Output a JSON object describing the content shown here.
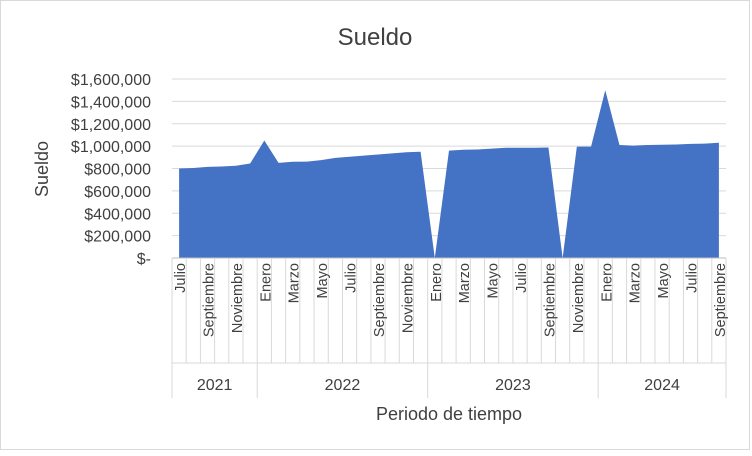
{
  "chart_data": {
    "type": "area",
    "title": "Sueldo",
    "xlabel": "Periodo de tiempo",
    "ylabel": "Sueldo",
    "ylim": [
      0,
      1600000
    ],
    "yticks": [
      0,
      200000,
      400000,
      600000,
      800000,
      1000000,
      1200000,
      1400000,
      1600000
    ],
    "ytick_labels": [
      "$-",
      "$200,000",
      "$400,000",
      "$600,000",
      "$800,000",
      "$1,000,000",
      "$1,200,000",
      "$1,400,000",
      "$1,600,000"
    ],
    "color": "#4472c4",
    "grid": true,
    "legend": "none",
    "years": [
      {
        "label": "2021",
        "start": 0,
        "count": 6
      },
      {
        "label": "2022",
        "start": 6,
        "count": 12
      },
      {
        "label": "2023",
        "start": 18,
        "count": 12
      },
      {
        "label": "2024",
        "start": 30,
        "count": 9
      }
    ],
    "x": [
      "Julio",
      "Agosto",
      "Septiembre",
      "Octubre",
      "Noviembre",
      "Diciembre",
      "Enero",
      "Febrero",
      "Marzo",
      "Abril",
      "Mayo",
      "Junio",
      "Julio",
      "Agosto",
      "Septiembre",
      "Octubre",
      "Noviembre",
      "Diciembre",
      "Enero",
      "Febrero",
      "Marzo",
      "Abril",
      "Mayo",
      "Junio",
      "Julio",
      "Agosto",
      "Septiembre",
      "Octubre",
      "Noviembre",
      "Diciembre",
      "Enero",
      "Febrero",
      "Marzo",
      "Abril",
      "Mayo",
      "Junio",
      "Julio",
      "Agosto",
      "Septiembre"
    ],
    "x_shown": [
      true,
      false,
      true,
      false,
      true,
      false,
      true,
      false,
      true,
      false,
      true,
      false,
      true,
      false,
      true,
      false,
      true,
      false,
      true,
      false,
      true,
      false,
      true,
      false,
      true,
      false,
      true,
      false,
      true,
      false,
      true,
      false,
      true,
      false,
      true,
      false,
      true,
      false,
      true
    ],
    "values": [
      800000,
      805000,
      815000,
      818000,
      825000,
      845000,
      1050000,
      850000,
      860000,
      862000,
      875000,
      895000,
      905000,
      915000,
      925000,
      935000,
      945000,
      950000,
      0,
      960000,
      968000,
      970000,
      978000,
      985000,
      985000,
      985000,
      988000,
      0,
      995000,
      995000,
      1500000,
      1010000,
      1005000,
      1010000,
      1012000,
      1015000,
      1020000,
      1022000,
      1030000
    ]
  }
}
